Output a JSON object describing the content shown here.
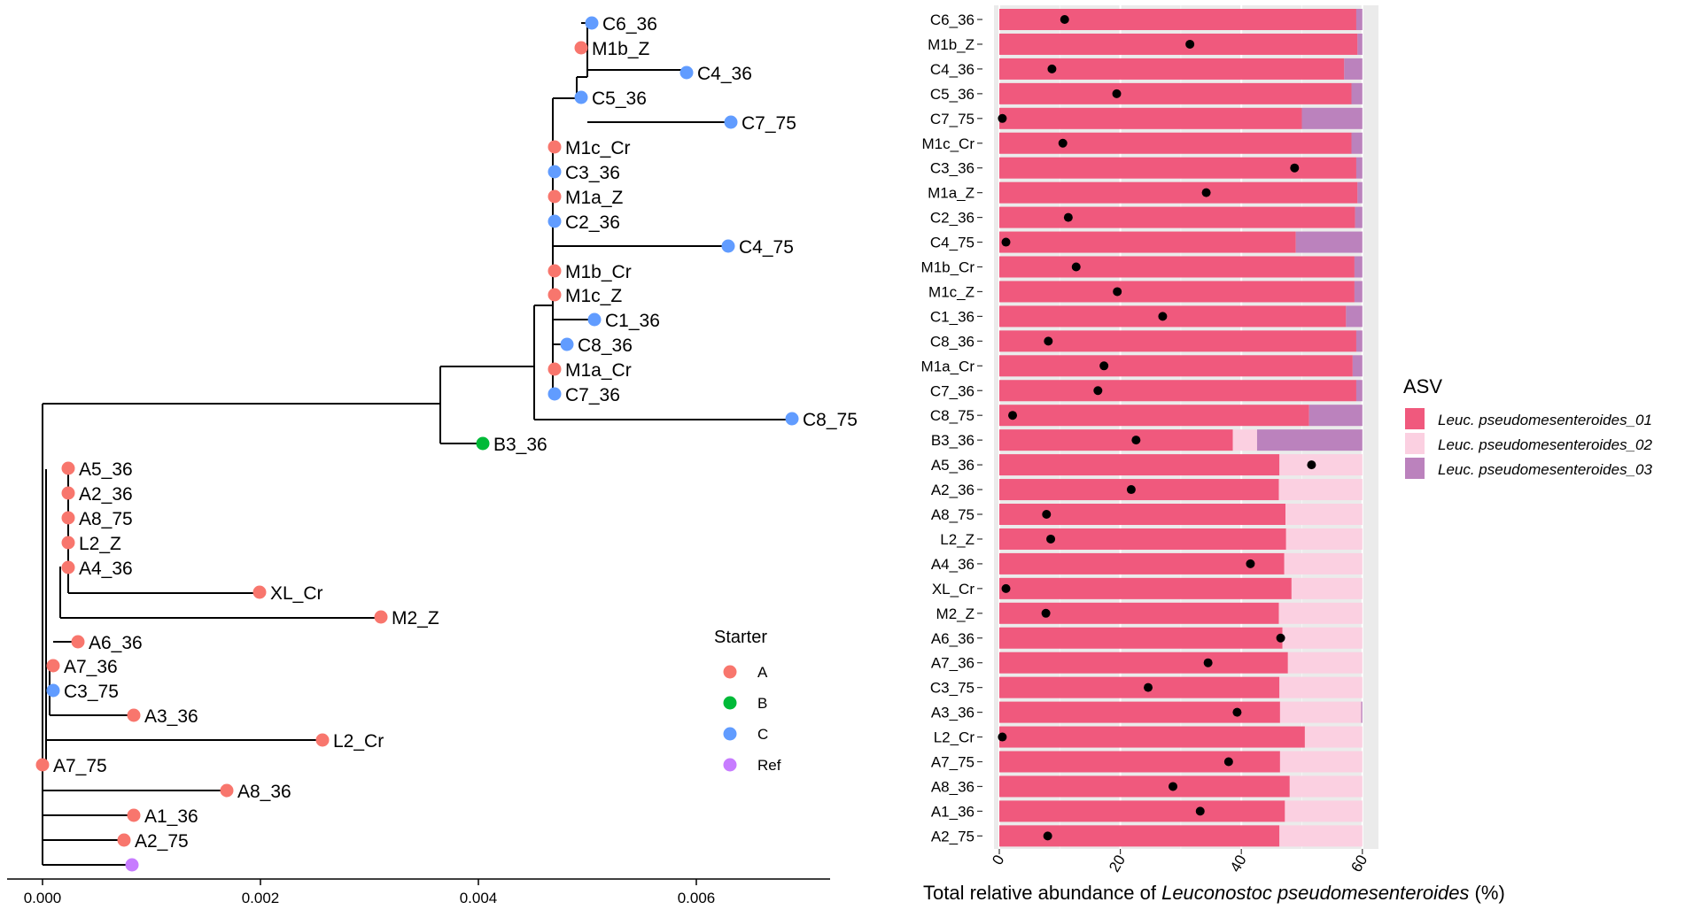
{
  "chart_data": [
    {
      "type": "tree",
      "name": "phylogenetic-tree",
      "xlim": [
        -0.0003,
        0.0072
      ],
      "x_ticks": [
        "0.000",
        "0.002",
        "0.004",
        "0.006"
      ],
      "x_tick_values": [
        0,
        0.002,
        0.004,
        0.006
      ],
      "legend": {
        "title": "Starter",
        "placement": "right",
        "entries": [
          {
            "label": "A",
            "color": "#F8766D"
          },
          {
            "label": "B",
            "color": "#00BA38"
          },
          {
            "label": "C",
            "color": "#619CFF"
          },
          {
            "label": "Ref",
            "color": "#C77CFF"
          }
        ]
      },
      "tips": [
        {
          "label": "C6_36",
          "x": 0.00502,
          "group": "C"
        },
        {
          "label": "M1b_Z",
          "x": 0.0049,
          "group": "A"
        },
        {
          "label": "C4_36",
          "x": 0.0059,
          "group": "C"
        },
        {
          "label": "C5_36",
          "x": 0.0049,
          "group": "C"
        },
        {
          "label": "C7_75",
          "x": 0.00628,
          "group": "C"
        },
        {
          "label": "M1c_Cr",
          "x": 0.00466,
          "group": "A"
        },
        {
          "label": "C3_36",
          "x": 0.00466,
          "group": "C"
        },
        {
          "label": "M1a_Z",
          "x": 0.00466,
          "group": "A"
        },
        {
          "label": "C2_36",
          "x": 0.00466,
          "group": "C"
        },
        {
          "label": "C4_75",
          "x": 0.00626,
          "group": "C"
        },
        {
          "label": "M1b_Cr",
          "x": 0.00466,
          "group": "A"
        },
        {
          "label": "M1c_Z",
          "x": 0.00466,
          "group": "A"
        },
        {
          "label": "C1_36",
          "x": 0.00503,
          "group": "C"
        },
        {
          "label": "C8_36",
          "x": 0.00478,
          "group": "C"
        },
        {
          "label": "M1a_Cr",
          "x": 0.00466,
          "group": "A"
        },
        {
          "label": "C7_36",
          "x": 0.00466,
          "group": "C"
        },
        {
          "label": "C8_75",
          "x": 0.00684,
          "group": "C"
        },
        {
          "label": "B3_36",
          "x": 0.00401,
          "group": "B"
        },
        {
          "label": "A5_36",
          "x": 0.00024,
          "group": "A"
        },
        {
          "label": "A2_36",
          "x": 0.00024,
          "group": "A"
        },
        {
          "label": "A8_75",
          "x": 0.00024,
          "group": "A"
        },
        {
          "label": "L2_Z",
          "x": 0.00024,
          "group": "A"
        },
        {
          "label": "A4_36",
          "x": 0.00024,
          "group": "A"
        },
        {
          "label": "XL_Cr",
          "x": 0.00198,
          "group": "A"
        },
        {
          "label": "M2_Z",
          "x": 0.00307,
          "group": "A"
        },
        {
          "label": "A6_36",
          "x": 0.00033,
          "group": "A"
        },
        {
          "label": "A7_36",
          "x": 0.0001,
          "group": "A"
        },
        {
          "label": "C3_75",
          "x": 0.0001,
          "group": "C"
        },
        {
          "label": "A3_36",
          "x": 0.00084,
          "group": "A"
        },
        {
          "label": "L2_Cr",
          "x": 0.00256,
          "group": "A"
        },
        {
          "label": "A7_75",
          "x": 0.0,
          "group": "A"
        },
        {
          "label": "A8_36",
          "x": 0.00168,
          "group": "A"
        },
        {
          "label": "A1_36",
          "x": 0.00084,
          "group": "A"
        },
        {
          "label": "A2_75",
          "x": 0.00075,
          "group": "A"
        },
        {
          "label": "",
          "x": 0.00082,
          "group": "Ref"
        }
      ]
    },
    {
      "type": "bar",
      "stacked": true,
      "orientation": "horizontal",
      "name": "abundance-bars",
      "xlabel_prefix": "Total relative abundance of ",
      "xlabel_italic": "Leuconostoc pseudomesenteroides",
      "xlabel_suffix": " (%)",
      "xlim": [
        0,
        60
      ],
      "x_ticks": [
        "0",
        "20",
        "40",
        "60"
      ],
      "x_tick_values": [
        0,
        20,
        40,
        60
      ],
      "categories": [
        "C6_36",
        "M1b_Z",
        "C4_36",
        "C5_36",
        "C7_75",
        "M1c_Cr",
        "C3_36",
        "M1a_Z",
        "C2_36",
        "C4_75",
        "M1b_Cr",
        "M1c_Z",
        "C1_36",
        "C8_36",
        "M1a_Cr",
        "C7_36",
        "C8_75",
        "B3_36",
        "A5_36",
        "A2_36",
        "A8_75",
        "L2_Z",
        "A4_36",
        "XL_Cr",
        "M2_Z",
        "A6_36",
        "A7_36",
        "C3_75",
        "A3_36",
        "L2_Cr",
        "A7_75",
        "A8_36",
        "A1_36",
        "A2_75"
      ],
      "series": [
        {
          "name": "Leuc. pseudomesenteroides_01",
          "color": "#F0597D",
          "values": [
            59,
            59.2,
            57,
            58.2,
            50,
            58.2,
            59,
            59.2,
            58.8,
            49,
            58.7,
            58.7,
            57.3,
            59,
            58.4,
            59,
            51.2,
            38.6,
            46.3,
            46.2,
            47.3,
            47.4,
            47.1,
            48.3,
            46.2,
            46.8,
            47.7,
            46.3,
            46.4,
            50.5,
            46.4,
            48,
            47.2,
            46.3
          ]
        },
        {
          "name": "Leuc. pseudomesenteroides_02",
          "color": "#FBD0E1",
          "values": [
            0,
            0,
            0,
            0,
            0,
            0,
            0,
            0,
            0,
            0,
            0,
            0,
            0,
            0,
            0,
            0,
            0,
            4,
            13.7,
            13.8,
            12.7,
            12.6,
            12.9,
            11.7,
            13.8,
            13.2,
            12.3,
            13.7,
            13.4,
            9.5,
            13.6,
            12,
            12.8,
            13.7
          ]
        },
        {
          "name": "Leuc. pseudomesenteroides_03",
          "color": "#BB82BD",
          "values": [
            1,
            0.8,
            3,
            1.8,
            10,
            1.8,
            1,
            0.8,
            1.2,
            11,
            1.3,
            1.3,
            2.7,
            1,
            1.6,
            1,
            8.8,
            17.4,
            0,
            0,
            0,
            0,
            0,
            0,
            0,
            0,
            0,
            0,
            0.2,
            0,
            0,
            0,
            0,
            0
          ]
        }
      ],
      "points": [
        10.8,
        31.5,
        8.7,
        19.4,
        0.5,
        10.5,
        48.8,
        34.2,
        11.4,
        1.1,
        12.7,
        19.5,
        27,
        8.1,
        17.3,
        16.3,
        2.2,
        22.6,
        51.6,
        21.8,
        7.8,
        8.5,
        41.5,
        1.1,
        7.7,
        46.5,
        34.5,
        24.6,
        39.3,
        0.5,
        37.9,
        28.7,
        33.2,
        8
      ]
    }
  ],
  "legend2": {
    "title": "ASV",
    "entries": [
      {
        "label": "Leuc. pseudomesenteroides_01",
        "color": "#F0597D"
      },
      {
        "label": "Leuc. pseudomesenteroides_02",
        "color": "#FBD0E1"
      },
      {
        "label": "Leuc. pseudomesenteroides_03",
        "color": "#BB82BD"
      }
    ]
  }
}
